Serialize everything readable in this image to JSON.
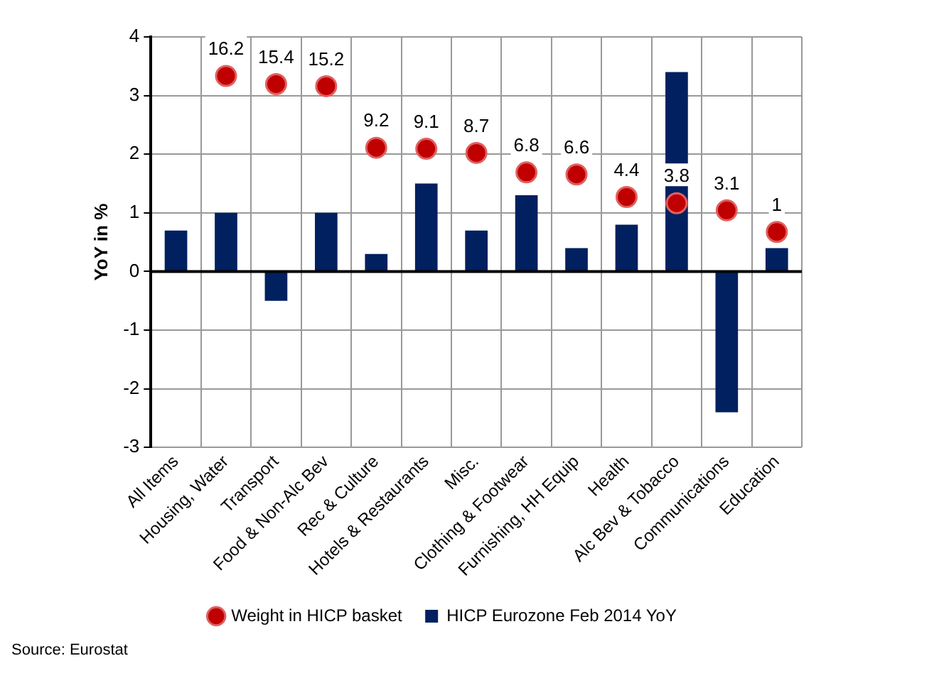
{
  "chart_data": {
    "type": "bar",
    "ylabel": "YoY in %",
    "categories": [
      "All Items",
      "Housing, Water",
      "Transport",
      "Food & Non-Alc Bev",
      "Rec & Culture",
      "Hotels & Restaurants",
      "Misc.",
      "Clothing & Footwear",
      "Furnishing, HH Equip",
      "Health",
      "Alc Bev & Tobacco",
      "Communications",
      "Education"
    ],
    "series": [
      {
        "name": "HICP Eurozone Feb 2014 YoY",
        "color": "#002060",
        "values": [
          0.7,
          1.0,
          -0.5,
          1.0,
          0.3,
          1.5,
          0.7,
          1.3,
          0.4,
          0.8,
          3.4,
          -2.4,
          0.4
        ]
      },
      {
        "name": "Weight in HICP basket",
        "type": "scatter",
        "axis": "y2",
        "color": "#c00000",
        "marker": "circle",
        "x": [
          "All Items",
          "Housing, Water",
          "Transport",
          "Food & Non-Alc Bev",
          "Rec & Culture",
          "Hotels & Restaurants",
          "Misc.",
          "Clothing & Footwear",
          "Furnishing, HH Equip",
          "Health",
          "Alc Bev & Tobacco",
          "Communications",
          "Education"
        ],
        "values": [
          null,
          16.2,
          15.4,
          15.2,
          9.2,
          9.1,
          8.7,
          6.8,
          6.6,
          4.4,
          3.8,
          3.1,
          1
        ],
        "value_labels": [
          null,
          "16.2",
          "15.4",
          "15.2",
          "9.2",
          "9.1",
          "8.7",
          "6.8",
          "6.6",
          "4.4",
          "3.8",
          "3.1",
          "1"
        ]
      }
    ],
    "ylim": [
      -3,
      4
    ],
    "yticks": [
      -3,
      -2,
      -1,
      0,
      1,
      2,
      3,
      4
    ],
    "y2lim": [
      -20,
      20
    ],
    "grid": true,
    "legend": "bottom",
    "annotations": [
      "Source: Eurostat"
    ]
  }
}
